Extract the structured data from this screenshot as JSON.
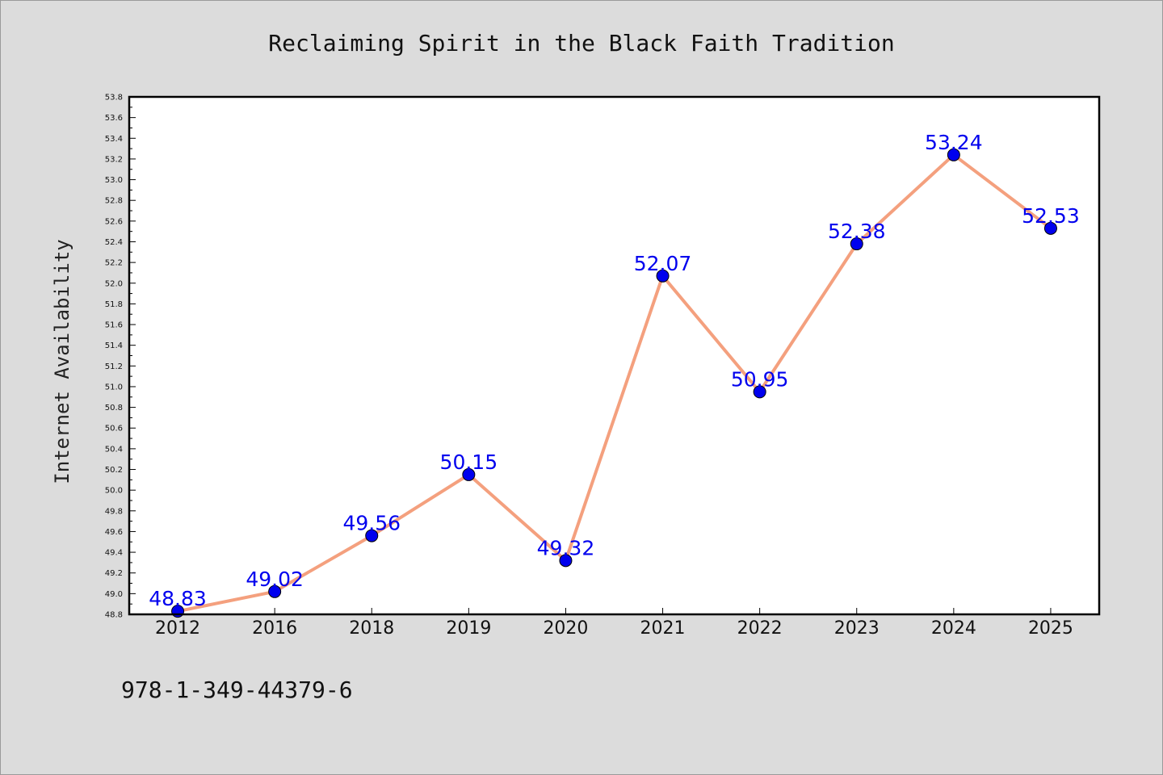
{
  "chart_data": {
    "type": "line",
    "title": "Reclaiming Spirit in the Black Faith Tradition",
    "xlabel": "",
    "ylabel": "Internet Availability",
    "categories": [
      "2012",
      "2016",
      "2018",
      "2019",
      "2020",
      "2021",
      "2022",
      "2023",
      "2024",
      "2025"
    ],
    "series": [
      {
        "values": [
          48.83,
          49.02,
          49.56,
          50.15,
          49.32,
          52.07,
          50.95,
          52.38,
          53.24,
          52.53
        ],
        "labels": [
          "48.83",
          "49.02",
          "49.56",
          "50.15",
          "49.32",
          "52.07",
          "50.95",
          "52.38",
          "53.24",
          "52.53"
        ]
      }
    ],
    "ylim": [
      48.8,
      53.8
    ],
    "yticks": [
      "48.8",
      "49.0",
      "49.2",
      "49.4",
      "49.6",
      "49.8",
      "50.0",
      "50.2",
      "50.4",
      "50.6",
      "50.8",
      "51.0",
      "51.2",
      "51.4",
      "51.6",
      "51.8",
      "52.0",
      "52.2",
      "52.4",
      "52.6",
      "52.8",
      "53.0",
      "53.2",
      "53.4",
      "53.6",
      "53.8"
    ],
    "grid": false,
    "line_color": "#f4a07e",
    "marker_color": "#0000ee",
    "label_color": "#0000ee",
    "background_color": "#dcdcdc",
    "plot_background": "#ffffff"
  },
  "footer": {
    "isbn": "978-1-349-44379-6"
  }
}
